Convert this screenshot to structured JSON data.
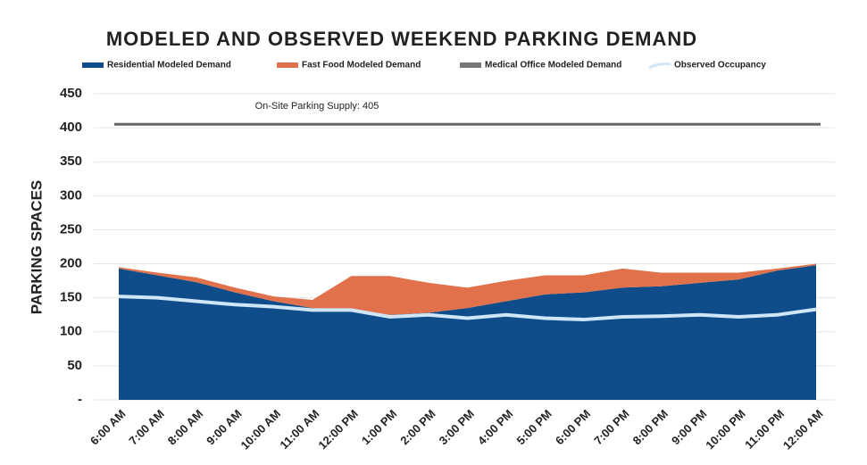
{
  "chart_data": {
    "type": "stacked_area",
    "title": "MODELED AND OBSERVED WEEKEND PARKING DEMAND",
    "ylabel": "PARKING SPACES",
    "categories": [
      "6:00 AM",
      "7:00 AM",
      "8:00 AM",
      "9:00 AM",
      "10:00 AM",
      "11:00 AM",
      "12:00 PM",
      "1:00 PM",
      "2:00 PM",
      "3:00 PM",
      "4:00 PM",
      "5:00 PM",
      "6:00 PM",
      "7:00 PM",
      "8:00 PM",
      "9:00 PM",
      "10:00 PM",
      "11:00 PM",
      "12:00 AM"
    ],
    "series": [
      {
        "name": "Residential Modeled Demand",
        "color": "#0f4c8a",
        "values": [
          193,
          183,
          173,
          158,
          145,
          135,
          132,
          125,
          128,
          135,
          145,
          155,
          158,
          165,
          167,
          172,
          177,
          190,
          198
        ]
      },
      {
        "name": "Fast Food Modeled Demand",
        "color": "#e0714b",
        "values": [
          2,
          4,
          7,
          7,
          7,
          12,
          50,
          57,
          44,
          30,
          30,
          28,
          25,
          28,
          20,
          15,
          10,
          3,
          2
        ]
      },
      {
        "name": "Medical Office Modeled Demand",
        "color": "#777777",
        "values": [
          0,
          0,
          0,
          0,
          0,
          0,
          0,
          0,
          0,
          0,
          0,
          0,
          0,
          0,
          0,
          0,
          0,
          0,
          0
        ]
      },
      {
        "name": "Observed Occupancy",
        "color": "#cfe6f6",
        "line": true,
        "values": [
          152,
          150,
          145,
          140,
          137,
          132,
          132,
          122,
          125,
          120,
          125,
          120,
          118,
          122,
          123,
          125,
          122,
          125,
          133
        ]
      }
    ],
    "supply": {
      "label": "On-Site Parking Supply: 405",
      "value": 405,
      "color": "#666666"
    },
    "ylim": [
      0,
      450
    ],
    "yticks": [
      {
        "value": 0,
        "label": "-"
      },
      50,
      100,
      150,
      200,
      250,
      300,
      350,
      400,
      450
    ],
    "grid": true
  }
}
